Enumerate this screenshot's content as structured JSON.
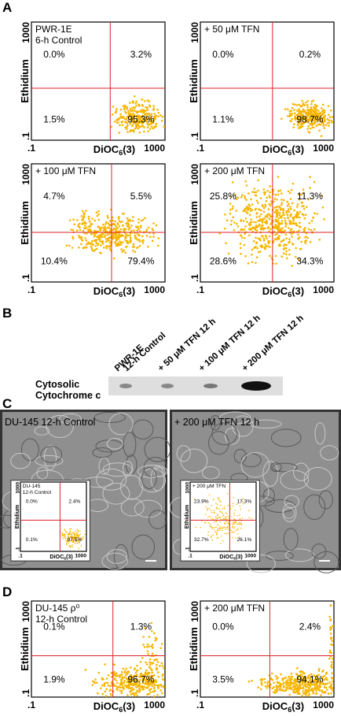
{
  "figure": {
    "axes": {
      "y_label": "Ethidium",
      "x_label": "DiOC",
      "x_label_sub": "6",
      "x_label_end": "(3)",
      "tick_low": ".1",
      "tick_high": "1000"
    },
    "panel_a": {
      "label": "A",
      "plots": [
        {
          "title_lines": [
            "PWR-1E",
            "6-h Control"
          ],
          "ul": "0.0%",
          "ur": "3.2%",
          "ll": "1.5%",
          "lr": "95.3%"
        },
        {
          "title_lines": [
            "+ 50 μM TFN"
          ],
          "ul": "0.0%",
          "ur": "0.2%",
          "ll": "1.1%",
          "lr": "98.7%"
        },
        {
          "title_lines": [
            "+ 100 μM TFN"
          ],
          "ul": "4.7%",
          "ur": "5.5%",
          "ll": "10.4%",
          "lr": "79.4%"
        },
        {
          "title_lines": [
            "+ 200 μM TFN"
          ],
          "ul": "25.8%",
          "ur": "11.3%",
          "ll": "28.6%",
          "lr": "34.3%"
        }
      ]
    },
    "panel_b": {
      "label": "B",
      "lanes": [
        [
          "PWR-1E",
          "12-h Control"
        ],
        [
          "+ 50 μM TFN 12 h"
        ],
        [
          "+ 100 μM TFN 12 h"
        ],
        [
          "+ 200 μM TFN 12 h"
        ]
      ],
      "row_label_lines": [
        "Cytosolic",
        "Cytochrome c"
      ]
    },
    "panel_c": {
      "label": "C",
      "images": [
        {
          "caption": "DU-145 12-h Control",
          "inset": {
            "title_lines": [
              "DU-145",
              "12-h Control"
            ],
            "ul": "0.0%",
            "ur": "2.4%",
            "ll": "0.1%",
            "lr": "97.5%"
          }
        },
        {
          "caption": "+ 200 μM TFN 12 h",
          "inset": {
            "title_lines": [
              "+ 200 μM TFN"
            ],
            "ul": "23.9%",
            "ur": "17.3%",
            "ll": "32.7%",
            "lr": "26.1%"
          }
        }
      ]
    },
    "panel_d": {
      "label": "D",
      "plots": [
        {
          "title_lines": [
            "DU-145 ρ⁰",
            "12-h Control"
          ],
          "ul": "0.1%",
          "ur": "1.3%",
          "ll": "1.9%",
          "lr": "96.7%"
        },
        {
          "title_lines": [
            "+ 200 μM TFN"
          ],
          "ul": "0.0%",
          "ur": "2.4%",
          "ll": "3.5%",
          "lr": "94.1%"
        }
      ]
    }
  }
}
